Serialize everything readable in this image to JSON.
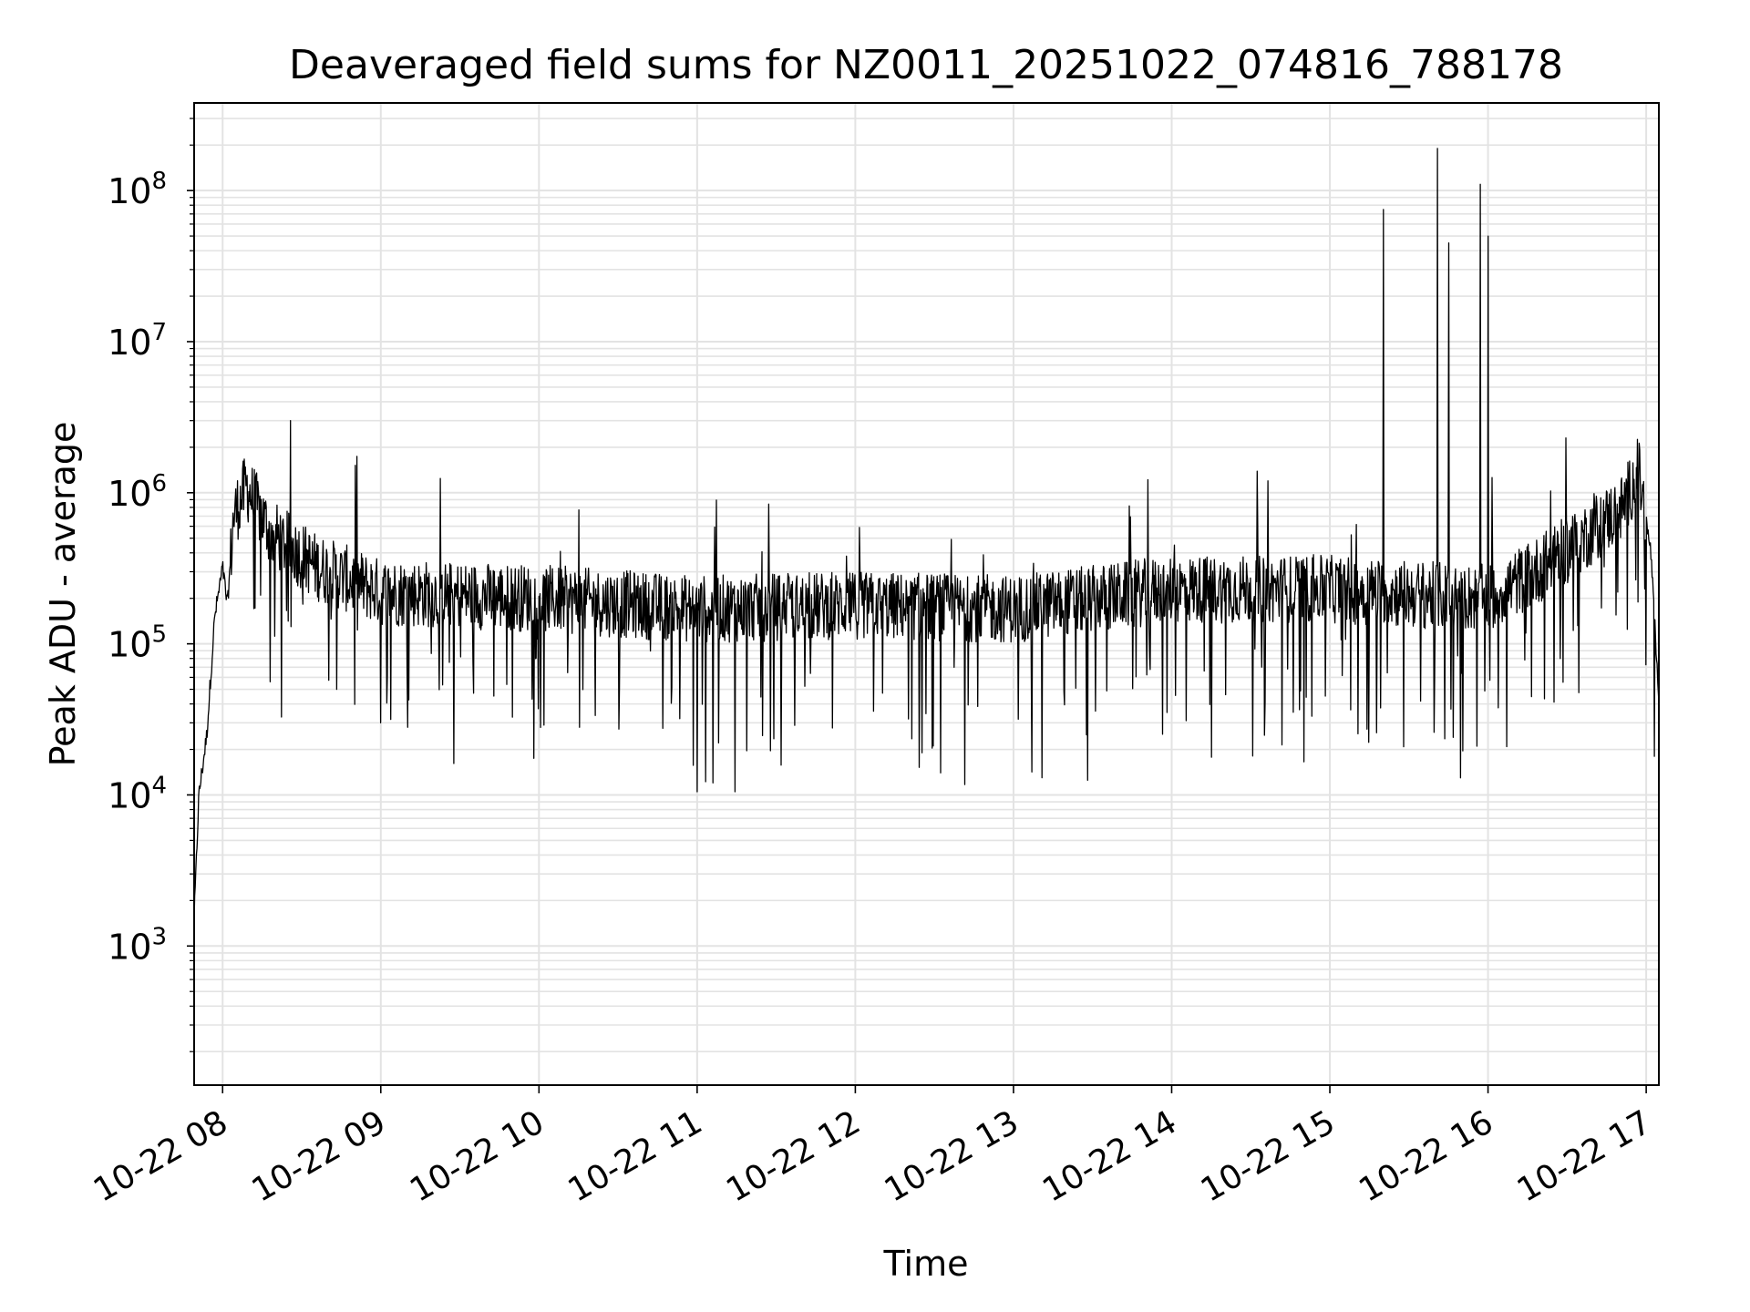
{
  "chart_data": {
    "type": "line",
    "title": "Deaveraged field sums for NZ0011_20251022_074816_788178",
    "xlabel": "Time",
    "ylabel": "Peak ADU - average",
    "yscale": "log",
    "ylim": [
      120,
      380000000
    ],
    "xlim_hours": [
      7.82,
      17.08
    ],
    "grid": true,
    "x_ticks": [
      {
        "label": "10-22 08",
        "hour": 8
      },
      {
        "label": "10-22 09",
        "hour": 9
      },
      {
        "label": "10-22 10",
        "hour": 10
      },
      {
        "label": "10-22 11",
        "hour": 11
      },
      {
        "label": "10-22 12",
        "hour": 12
      },
      {
        "label": "10-22 13",
        "hour": 13
      },
      {
        "label": "10-22 14",
        "hour": 14
      },
      {
        "label": "10-22 15",
        "hour": 15
      },
      {
        "label": "10-22 16",
        "hour": 16
      },
      {
        "label": "10-22 17",
        "hour": 17
      }
    ],
    "y_ticks": [
      {
        "base": "10",
        "exp": "3",
        "value": 1000
      },
      {
        "base": "10",
        "exp": "4",
        "value": 10000
      },
      {
        "base": "10",
        "exp": "5",
        "value": 100000
      },
      {
        "base": "10",
        "exp": "6",
        "value": 1000000
      },
      {
        "base": "10",
        "exp": "7",
        "value": 10000000
      },
      {
        "base": "10",
        "exp": "8",
        "value": 100000000
      }
    ],
    "series": [
      {
        "name": "deaveraged field sum",
        "color": "#000000",
        "baseline_profile": [
          {
            "hour": 7.82,
            "value": 1500
          },
          {
            "hour": 7.85,
            "value": 10000
          },
          {
            "hour": 7.9,
            "value": 25000
          },
          {
            "hour": 7.95,
            "value": 150000
          },
          {
            "hour": 8.0,
            "value": 320000
          },
          {
            "hour": 8.03,
            "value": 180000
          },
          {
            "hour": 8.07,
            "value": 700000
          },
          {
            "hour": 8.15,
            "value": 1100000
          },
          {
            "hour": 8.3,
            "value": 550000
          },
          {
            "hour": 8.6,
            "value": 320000
          },
          {
            "hour": 9.0,
            "value": 220000
          },
          {
            "hour": 10.0,
            "value": 200000
          },
          {
            "hour": 11.0,
            "value": 170000
          },
          {
            "hour": 12.0,
            "value": 180000
          },
          {
            "hour": 13.0,
            "value": 170000
          },
          {
            "hour": 14.0,
            "value": 230000
          },
          {
            "hour": 15.0,
            "value": 230000
          },
          {
            "hour": 15.6,
            "value": 210000
          },
          {
            "hour": 16.0,
            "value": 200000
          },
          {
            "hour": 16.3,
            "value": 300000
          },
          {
            "hour": 16.6,
            "value": 500000
          },
          {
            "hour": 16.85,
            "value": 800000
          },
          {
            "hour": 16.95,
            "value": 1400000
          },
          {
            "hour": 17.03,
            "value": 400000
          },
          {
            "hour": 17.08,
            "value": 40000
          }
        ],
        "spikes": [
          {
            "hour": 8.43,
            "value": 3000000
          },
          {
            "hour": 15.34,
            "value": 75000000
          },
          {
            "hour": 15.68,
            "value": 190000000
          },
          {
            "hour": 15.75,
            "value": 45000000
          },
          {
            "hour": 15.95,
            "value": 110000000
          },
          {
            "hour": 16.0,
            "value": 50000000
          }
        ],
        "dips": [
          {
            "hour": 11.0,
            "value": 10500
          },
          {
            "hour": 11.24,
            "value": 10500
          },
          {
            "hour": 11.1,
            "value": 12000
          },
          {
            "hour": 13.18,
            "value": 13000
          },
          {
            "hour": 13.47,
            "value": 12500
          },
          {
            "hour": 9.0,
            "value": 30000
          },
          {
            "hour": 8.72,
            "value": 50000
          },
          {
            "hour": 12.42,
            "value": 19000
          },
          {
            "hour": 15.66,
            "value": 26000
          },
          {
            "hour": 17.05,
            "value": 18000
          }
        ]
      }
    ]
  }
}
